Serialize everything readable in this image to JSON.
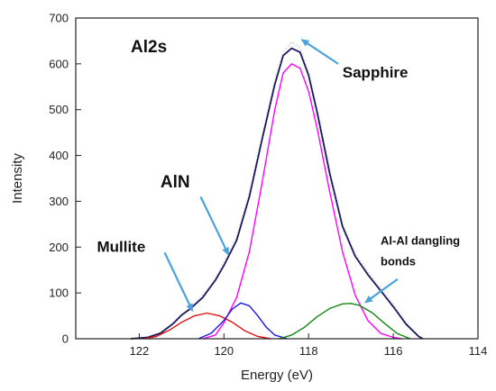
{
  "chart_data": {
    "type": "line",
    "xlabel": "Energy (eV)",
    "ylabel": "Intensity",
    "xlim": [
      123.5,
      114
    ],
    "ylim": [
      0,
      700
    ],
    "x_ticks": [
      "122",
      "120",
      "118",
      "116",
      "114"
    ],
    "y_ticks": [
      "0",
      "100",
      "200",
      "300",
      "400",
      "500",
      "600",
      "700"
    ],
    "x_tick_values": [
      122,
      120,
      118,
      116,
      114
    ],
    "y_tick_values": [
      0,
      100,
      200,
      300,
      400,
      500,
      600,
      700
    ],
    "grid": false,
    "series": [
      {
        "color": "#e6e6e6",
        "x": [
          122.2,
          121.8,
          121.5,
          121.2,
          121.0,
          120.8,
          120.5,
          120.2,
          120.0,
          119.7,
          119.4,
          119.1,
          118.8,
          118.6,
          118.4,
          118.2,
          118.0,
          117.8,
          117.5,
          117.2,
          116.9,
          116.6,
          116.3,
          116.0,
          115.7,
          115.4,
          115.3
        ],
        "values": [
          0,
          3,
          12,
          33,
          50,
          66,
          95,
          130,
          165,
          220,
          315,
          440,
          560,
          625,
          648,
          635,
          580,
          500,
          365,
          250,
          185,
          145,
          110,
          75,
          35,
          5,
          0
        ]
      },
      {
        "color": "#1a1a5e",
        "x": [
          122.2,
          121.8,
          121.5,
          121.2,
          121.0,
          120.8,
          120.5,
          120.2,
          120.0,
          119.7,
          119.4,
          119.1,
          118.8,
          118.6,
          118.4,
          118.2,
          118.0,
          117.8,
          117.5,
          117.2,
          116.9,
          116.6,
          116.3,
          116.0,
          115.7,
          115.4,
          115.3
        ],
        "values": [
          0,
          3,
          12,
          33,
          52,
          65,
          90,
          128,
          160,
          215,
          310,
          435,
          555,
          618,
          634,
          625,
          575,
          495,
          360,
          245,
          180,
          140,
          105,
          70,
          32,
          5,
          0
        ]
      },
      {
        "color": "#ff00ff",
        "x": [
          120.5,
          120.2,
          120.0,
          119.7,
          119.4,
          119.1,
          118.8,
          118.6,
          118.4,
          118.2,
          118.0,
          117.8,
          117.5,
          117.2,
          116.9,
          116.6,
          116.3,
          116.0,
          115.8
        ],
        "values": [
          0,
          8,
          35,
          90,
          190,
          340,
          500,
          580,
          600,
          590,
          540,
          460,
          320,
          190,
          95,
          40,
          12,
          3,
          0
        ]
      },
      {
        "color": "#dd1111",
        "x": [
          121.9,
          121.6,
          121.3,
          121.0,
          120.7,
          120.4,
          120.1,
          119.8,
          119.5,
          119.2,
          118.9
        ],
        "values": [
          0,
          5,
          18,
          36,
          50,
          56,
          50,
          36,
          17,
          5,
          0
        ]
      },
      {
        "color": "#1a1adc",
        "x": [
          120.6,
          120.3,
          120.0,
          119.8,
          119.6,
          119.4,
          119.2,
          119.0,
          118.8,
          118.5
        ],
        "values": [
          0,
          12,
          40,
          65,
          78,
          72,
          50,
          25,
          8,
          0
        ]
      },
      {
        "color": "#118811",
        "x": [
          118.7,
          118.4,
          118.1,
          117.8,
          117.5,
          117.2,
          117.0,
          116.8,
          116.5,
          116.2,
          115.9,
          115.6
        ],
        "values": [
          0,
          8,
          25,
          48,
          66,
          76,
          77,
          73,
          57,
          33,
          11,
          0
        ]
      }
    ],
    "annotations": [
      {
        "text": "Al2s",
        "x": 122.2,
        "y": 625,
        "size": "large",
        "arrow": null
      },
      {
        "text": "Sapphire",
        "x": 117.2,
        "y": 570,
        "size": "medium",
        "arrow": {
          "from": [
            117.3,
            600
          ],
          "to": [
            118.15,
            652
          ]
        }
      },
      {
        "text": "AlN",
        "x": 121.5,
        "y": 330,
        "size": "large",
        "arrow": {
          "from": [
            120.55,
            310
          ],
          "to": [
            119.9,
            185
          ]
        }
      },
      {
        "text": "Mullite",
        "x": 123.0,
        "y": 190,
        "size": "medium",
        "arrow": {
          "from": [
            121.4,
            188
          ],
          "to": [
            120.75,
            62
          ]
        }
      },
      {
        "text": "Al-Al dangling",
        "x": 116.3,
        "y": 205,
        "size": "small",
        "arrow": null
      },
      {
        "text": "bonds",
        "x": 116.3,
        "y": 160,
        "size": "small",
        "arrow": {
          "from": [
            115.9,
            130
          ],
          "to": [
            116.65,
            80
          ]
        }
      }
    ]
  }
}
